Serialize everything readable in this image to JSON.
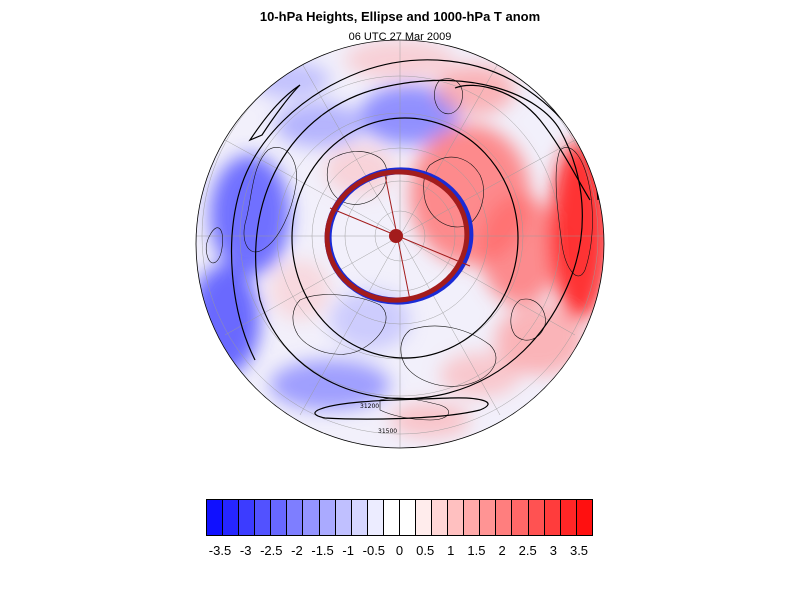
{
  "title": "10-hPa Heights, Ellipse and 1000-hPa T anom",
  "subtitle": "06 UTC 27 Mar 2009",
  "map": {
    "projection": "polar stereographic (north pole)",
    "contour_labels": [
      "31200",
      "31500"
    ],
    "ellipse_color": "#a31c1c",
    "contour_color": "#000000",
    "warm_color": "#ff0000",
    "cold_color": "#0000ff"
  },
  "colorbar": {
    "levels": [
      "-3.5",
      "-3",
      "-2.5",
      "-2",
      "-1.5",
      "-1",
      "-0.5",
      "0",
      "0.5",
      "1",
      "1.5",
      "2",
      "2.5",
      "3",
      "3.5"
    ],
    "segment_colors": [
      "#1010ff",
      "#2626ff",
      "#3c3cff",
      "#5252ff",
      "#6868ff",
      "#7e7eff",
      "#9494ff",
      "#aaaaff",
      "#c0c0ff",
      "#d6d6ff",
      "#ececff",
      "#ffffff",
      "#ffffff",
      "#ffecec",
      "#ffd6d6",
      "#ffc0c0",
      "#ffaaaa",
      "#ff9494",
      "#ff7e7e",
      "#ff6868",
      "#ff5252",
      "#ff3c3c",
      "#ff2626",
      "#ff1010"
    ]
  }
}
